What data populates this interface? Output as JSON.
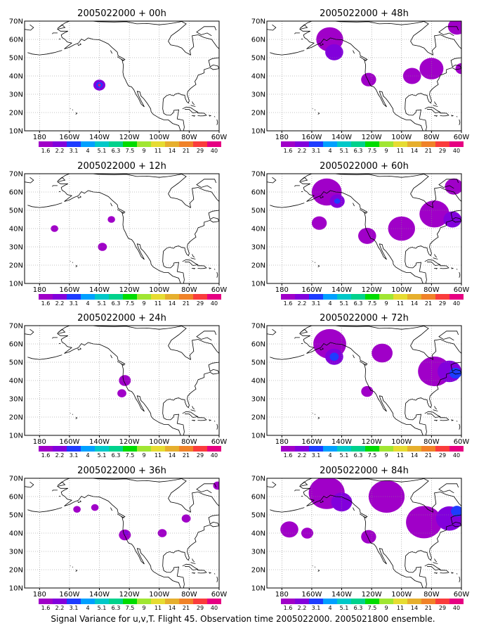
{
  "colors": {
    "land_outline": "#000000",
    "grid_line": "#888888",
    "colorbar": [
      "#a000c8",
      "#8200dc",
      "#1e3cff",
      "#00a0ff",
      "#00c8c8",
      "#00d28c",
      "#00dc00",
      "#a0e632",
      "#e6dc32",
      "#e6af2d",
      "#f08228",
      "#fa3c3c",
      "#e60082"
    ]
  },
  "panels": [
    {
      "title": "2005022000 + 00h",
      "xticks": [
        "180",
        "160W",
        "140W",
        "120W",
        "100W",
        "80W",
        "60W"
      ],
      "yticks": [
        "10N",
        "20N",
        "30N",
        "40N",
        "50N",
        "60N",
        "70N"
      ],
      "colorbar_labels": [
        "1.6",
        "2.2",
        "3.1",
        "4",
        "5.1",
        "6.3",
        "7.5",
        "9",
        "11",
        "14",
        "21",
        "29",
        "40"
      ],
      "signal": [
        {
          "lon": -140,
          "lat": 35,
          "r": 4,
          "level": 1
        },
        {
          "lon": -140,
          "lat": 35,
          "r": 2.2,
          "level": 2
        },
        {
          "lon": -140,
          "lat": 35,
          "r": 1.0,
          "level": 12
        }
      ]
    },
    {
      "title": "2005022000 + 48h",
      "xticks": [
        "180",
        "160W",
        "140W",
        "120W",
        "100W",
        "80W",
        "60W"
      ],
      "yticks": [
        "10N",
        "20N",
        "30N",
        "40N",
        "50N",
        "60N",
        "70N"
      ],
      "colorbar_labels": [
        "1.6",
        "2.2",
        "3.1",
        "4",
        "5.1",
        "6.3",
        "7.5",
        "9",
        "11",
        "14",
        "21",
        "29",
        "40"
      ],
      "signal": [
        {
          "lon": -148,
          "lat": 60,
          "r": 9,
          "level": 0
        },
        {
          "lon": -145,
          "lat": 53,
          "r": 6,
          "level": 1
        },
        {
          "lon": -122,
          "lat": 38,
          "r": 5,
          "level": 0
        },
        {
          "lon": -93,
          "lat": 40,
          "r": 6,
          "level": 0
        },
        {
          "lon": -80,
          "lat": 44,
          "r": 8,
          "level": 0
        },
        {
          "lon": -63,
          "lat": 67,
          "r": 6,
          "level": 0
        },
        {
          "lon": -60,
          "lat": 44,
          "r": 4,
          "level": 0
        }
      ]
    },
    {
      "title": "2005022000 + 12h",
      "xticks": [
        "180",
        "160W",
        "140W",
        "120W",
        "100W",
        "80W",
        "60W"
      ],
      "yticks": [
        "10N",
        "20N",
        "30N",
        "40N",
        "50N",
        "60N",
        "70N"
      ],
      "colorbar_labels": [
        "1.6",
        "2.2",
        "3.1",
        "4",
        "5.1",
        "6.3",
        "7.5",
        "9",
        "11",
        "14",
        "21",
        "29",
        "40"
      ],
      "signal": [
        {
          "lon": -170,
          "lat": 40,
          "r": 2.5,
          "level": 0
        },
        {
          "lon": -132,
          "lat": 45,
          "r": 2.5,
          "level": 0
        },
        {
          "lon": -138,
          "lat": 30,
          "r": 3,
          "level": 0
        }
      ]
    },
    {
      "title": "2005022000 + 60h",
      "xticks": [
        "180",
        "160W",
        "140W",
        "120W",
        "100W",
        "80W",
        "60W"
      ],
      "yticks": [
        "10N",
        "20N",
        "30N",
        "40N",
        "50N",
        "60N",
        "70N"
      ],
      "colorbar_labels": [
        "1.6",
        "2.2",
        "3.1",
        "4",
        "5.1",
        "6.3",
        "7.5",
        "9",
        "11",
        "14",
        "21",
        "29",
        "40"
      ],
      "signal": [
        {
          "lon": -150,
          "lat": 60,
          "r": 10,
          "level": 0
        },
        {
          "lon": -143,
          "lat": 55,
          "r": 5,
          "level": 1
        },
        {
          "lon": -143,
          "lat": 55,
          "r": 2,
          "level": 2
        },
        {
          "lon": -155,
          "lat": 43,
          "r": 5,
          "level": 0
        },
        {
          "lon": -123,
          "lat": 36,
          "r": 6,
          "level": 0
        },
        {
          "lon": -100,
          "lat": 40,
          "r": 9,
          "level": 0
        },
        {
          "lon": -78,
          "lat": 48,
          "r": 10,
          "level": 0
        },
        {
          "lon": -66,
          "lat": 45,
          "r": 6,
          "level": 1
        },
        {
          "lon": -65,
          "lat": 63,
          "r": 6,
          "level": 0
        }
      ]
    },
    {
      "title": "2005022000 + 24h",
      "xticks": [
        "180",
        "160W",
        "140W",
        "120W",
        "100W",
        "80W",
        "60W"
      ],
      "yticks": [
        "10N",
        "20N",
        "30N",
        "40N",
        "50N",
        "60N",
        "70N"
      ],
      "colorbar_labels": [
        "1.6",
        "2.2",
        "3.1",
        "4",
        "5.1",
        "6.3",
        "7.5",
        "9",
        "11",
        "14",
        "21",
        "29",
        "40"
      ],
      "signal": [
        {
          "lon": -123,
          "lat": 40,
          "r": 4,
          "level": 0
        },
        {
          "lon": -125,
          "lat": 33,
          "r": 3,
          "level": 0
        }
      ]
    },
    {
      "title": "2005022000 + 72h",
      "xticks": [
        "180",
        "160W",
        "140W",
        "120W",
        "100W",
        "80W",
        "60W"
      ],
      "yticks": [
        "10N",
        "20N",
        "30N",
        "40N",
        "50N",
        "60N",
        "70N"
      ],
      "colorbar_labels": [
        "1.6",
        "2.2",
        "3.1",
        "4",
        "5.1",
        "6.3",
        "7.5",
        "9",
        "11",
        "14",
        "21",
        "29",
        "40"
      ],
      "signal": [
        {
          "lon": -148,
          "lat": 60,
          "r": 11,
          "level": 0
        },
        {
          "lon": -145,
          "lat": 53,
          "r": 6,
          "level": 1
        },
        {
          "lon": -145,
          "lat": 53,
          "r": 3,
          "level": 2
        },
        {
          "lon": -113,
          "lat": 55,
          "r": 7,
          "level": 0
        },
        {
          "lon": -123,
          "lat": 34,
          "r": 4,
          "level": 0
        },
        {
          "lon": -78,
          "lat": 45,
          "r": 11,
          "level": 0
        },
        {
          "lon": -68,
          "lat": 45,
          "r": 8,
          "level": 1
        },
        {
          "lon": -64,
          "lat": 44,
          "r": 4,
          "level": 2
        }
      ]
    },
    {
      "title": "2005022000 + 36h",
      "xticks": [
        "180",
        "160W",
        "140W",
        "120W",
        "100W",
        "80W",
        "60W"
      ],
      "yticks": [
        "10N",
        "20N",
        "30N",
        "40N",
        "50N",
        "60N",
        "70N"
      ],
      "colorbar_labels": [
        "1.6",
        "2.2",
        "3.1",
        "4",
        "5.1",
        "6.3",
        "7.5",
        "9",
        "11",
        "14",
        "21",
        "29",
        "40"
      ],
      "signal": [
        {
          "lon": -155,
          "lat": 53,
          "r": 2.5,
          "level": 0
        },
        {
          "lon": -143,
          "lat": 54,
          "r": 2.5,
          "level": 0
        },
        {
          "lon": -123,
          "lat": 39,
          "r": 4,
          "level": 0
        },
        {
          "lon": -122,
          "lat": 40,
          "r": 1.5,
          "level": 1
        },
        {
          "lon": -98,
          "lat": 40,
          "r": 3,
          "level": 0
        },
        {
          "lon": -82,
          "lat": 48,
          "r": 3,
          "level": 0
        },
        {
          "lon": -61,
          "lat": 66,
          "r": 3,
          "level": 0
        }
      ]
    },
    {
      "title": "2005022000 + 84h",
      "xticks": [
        "180",
        "160W",
        "140W",
        "120W",
        "100W",
        "80W",
        "60W"
      ],
      "yticks": [
        "10N",
        "20N",
        "30N",
        "40N",
        "50N",
        "60N",
        "70N"
      ],
      "colorbar_labels": [
        "1.6",
        "2.2",
        "3.1",
        "4",
        "5.1",
        "6.3",
        "7.5",
        "9",
        "11",
        "14",
        "21",
        "29",
        "40"
      ],
      "signal": [
        {
          "lon": -150,
          "lat": 62,
          "r": 12,
          "level": 0
        },
        {
          "lon": -110,
          "lat": 60,
          "r": 12,
          "level": 0
        },
        {
          "lon": -140,
          "lat": 57,
          "r": 7,
          "level": 1
        },
        {
          "lon": -175,
          "lat": 42,
          "r": 6,
          "level": 0
        },
        {
          "lon": -163,
          "lat": 40,
          "r": 4,
          "level": 0
        },
        {
          "lon": -122,
          "lat": 38,
          "r": 5,
          "level": 0
        },
        {
          "lon": -85,
          "lat": 46,
          "r": 12,
          "level": 0
        },
        {
          "lon": -68,
          "lat": 48,
          "r": 9,
          "level": 1
        },
        {
          "lon": -63,
          "lat": 52,
          "r": 4,
          "level": 2
        }
      ]
    }
  ],
  "caption": "Signal Variance for u,v,T. Flight 45. Observation time 2005022000. 2005021800 ensemble."
}
